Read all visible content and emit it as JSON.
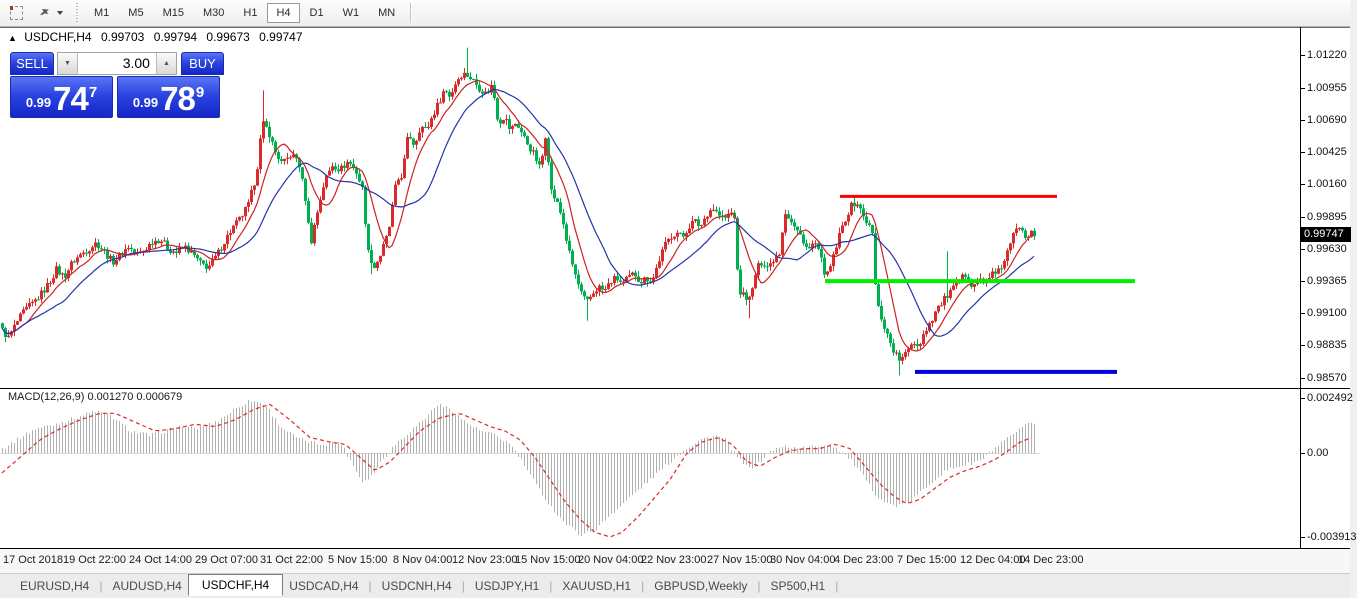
{
  "toolbar": {
    "icons": [
      {
        "name": "chart-shift-icon"
      },
      {
        "name": "arrange-arrows-icon"
      }
    ],
    "timeframes": [
      "M1",
      "M5",
      "M15",
      "M30",
      "H1",
      "H4",
      "D1",
      "W1",
      "MN"
    ],
    "active_timeframe": "H4"
  },
  "chart_header": {
    "collapse_icon": "▲",
    "symbol": "USDCHF,H4",
    "open": "0.99703",
    "high": "0.99794",
    "low": "0.99673",
    "close": "0.99747"
  },
  "trade_panel": {
    "sell_label": "SELL",
    "buy_label": "BUY",
    "volume": "3.00",
    "spin_down_icon": "▼",
    "spin_up_icon": "▲",
    "sell_price": {
      "prefix": "0.99",
      "big": "74",
      "sup": "7"
    },
    "buy_price": {
      "prefix": "0.99",
      "big": "78",
      "sup": "9"
    }
  },
  "price_axis": {
    "labels": [
      {
        "text": "1.01220",
        "y": 55
      },
      {
        "text": "1.00955",
        "y": 88
      },
      {
        "text": "1.00690",
        "y": 120
      },
      {
        "text": "1.00425",
        "y": 152
      },
      {
        "text": "1.00160",
        "y": 184
      },
      {
        "text": "0.99895",
        "y": 217
      },
      {
        "text": "0.99630",
        "y": 249
      },
      {
        "text": "0.99365",
        "y": 281
      },
      {
        "text": "0.99100",
        "y": 313
      },
      {
        "text": "0.98835",
        "y": 345
      },
      {
        "text": "0.98570",
        "y": 378
      }
    ],
    "current": {
      "text": "0.99747",
      "y": 235
    }
  },
  "macd_panel": {
    "label": "MACD(12,26,9) 0.001270 0.000679",
    "axis": [
      {
        "text": "0.002492",
        "y": 398
      },
      {
        "text": "0.00",
        "y": 453
      },
      {
        "text": "-0.003913",
        "y": 537
      }
    ]
  },
  "time_axis": {
    "labels": [
      "17 Oct 2018",
      "19 Oct 22:00",
      "24 Oct 14:00",
      "29 Oct 07:00",
      "31 Oct 22:00",
      "5 Nov 15:00",
      "8 Nov 04:00",
      "12 Nov 23:00",
      "15 Nov 15:00",
      "20 Nov 04:00",
      "22 Nov 23:00",
      "27 Nov 15:00",
      "30 Nov 04:00",
      "4 Dec 23:00",
      "7 Dec 15:00",
      "12 Dec 04:00",
      "14 Dec 23:00"
    ],
    "x": [
      3,
      63,
      129,
      195,
      260,
      328,
      393,
      452,
      515,
      578,
      641,
      707,
      770,
      834,
      897,
      960,
      1018
    ],
    "tick_x": [
      2,
      57,
      123,
      189,
      254,
      322,
      387,
      446,
      509,
      572,
      637,
      701,
      766,
      828,
      891,
      954,
      1016
    ]
  },
  "tabs": {
    "items": [
      "EURUSD,H4",
      "AUDUSD,H4",
      "USDCHF,H4",
      "USDCAD,H4",
      "USDCNH,H4",
      "USDJPY,H1",
      "XAUUSD,H1",
      "GBPUSD,Weekly",
      "SP500,H1"
    ],
    "active": "USDCHF,H4"
  },
  "colors": {
    "up": "#d92b2b",
    "down": "#00b050",
    "ma_fast": "#cc2222",
    "ma_slow": "#2433a8",
    "hist": "#b0b0b0",
    "signal": "#d92b2b",
    "badge_bg": "#000000",
    "badge_text": "#ffffff"
  },
  "chart_data": {
    "type": "candlestick",
    "symbol": "USDCHF",
    "timeframe": "H4",
    "indicator": "MACD(12,26,9)",
    "y_axis": {
      "top_price": 1.0122,
      "top_y": 55,
      "bottom_price": 0.9857,
      "bottom_y": 378
    },
    "x_range": [
      2,
      1035
    ],
    "candle_pitch": 3,
    "price_path": [
      [
        2,
        0.9896
      ],
      [
        8,
        0.989
      ],
      [
        16,
        0.9902
      ],
      [
        24,
        0.9912
      ],
      [
        32,
        0.9918
      ],
      [
        40,
        0.9925
      ],
      [
        48,
        0.9934
      ],
      [
        56,
        0.9946
      ],
      [
        64,
        0.994
      ],
      [
        72,
        0.9952
      ],
      [
        80,
        0.9958
      ],
      [
        88,
        0.9963
      ],
      [
        96,
        0.9968
      ],
      [
        104,
        0.9961
      ],
      [
        112,
        0.9952
      ],
      [
        120,
        0.9958
      ],
      [
        128,
        0.9965
      ],
      [
        136,
        0.9958
      ],
      [
        144,
        0.9962
      ],
      [
        152,
        0.9969
      ],
      [
        160,
        0.9971
      ],
      [
        168,
        0.9963
      ],
      [
        176,
        0.996
      ],
      [
        184,
        0.9965
      ],
      [
        192,
        0.9959
      ],
      [
        200,
        0.9951
      ],
      [
        208,
        0.9948
      ],
      [
        216,
        0.9957
      ],
      [
        224,
        0.9969
      ],
      [
        232,
        0.998
      ],
      [
        240,
        0.9988
      ],
      [
        248,
        0.9999
      ],
      [
        256,
        1.0024
      ],
      [
        262,
        1.0066
      ],
      [
        268,
        1.006
      ],
      [
        274,
        1.0044
      ],
      [
        282,
        1.0032
      ],
      [
        290,
        1.004
      ],
      [
        298,
        1.0036
      ],
      [
        306,
        1.0
      ],
      [
        310,
        0.9966
      ],
      [
        316,
        0.999
      ],
      [
        324,
        1.0018
      ],
      [
        332,
        1.0032
      ],
      [
        340,
        1.0028
      ],
      [
        348,
        1.0035
      ],
      [
        356,
        1.0026
      ],
      [
        362,
        1.0012
      ],
      [
        368,
        0.996
      ],
      [
        374,
        0.9948
      ],
      [
        380,
        0.9958
      ],
      [
        388,
        0.9976
      ],
      [
        396,
        1.0018
      ],
      [
        402,
        1.0024
      ],
      [
        408,
        1.0058
      ],
      [
        414,
        1.0048
      ],
      [
        420,
        1.0064
      ],
      [
        426,
        1.006
      ],
      [
        432,
        1.0072
      ],
      [
        438,
        1.0082
      ],
      [
        444,
        1.0094
      ],
      [
        450,
        1.0088
      ],
      [
        456,
        1.0101
      ],
      [
        462,
        1.0107
      ],
      [
        468,
        1.0105
      ],
      [
        474,
        1.01
      ],
      [
        480,
        1.0094
      ],
      [
        486,
        1.009
      ],
      [
        492,
        1.0098
      ],
      [
        498,
        1.0066
      ],
      [
        504,
        1.0072
      ],
      [
        510,
        1.006
      ],
      [
        516,
        1.0067
      ],
      [
        522,
        1.0057
      ],
      [
        528,
        1.0048
      ],
      [
        534,
        1.004
      ],
      [
        540,
        1.0028
      ],
      [
        546,
        1.0062
      ],
      [
        550,
        1.0012
      ],
      [
        556,
        1.0002
      ],
      [
        562,
        0.9988
      ],
      [
        568,
        0.9962
      ],
      [
        574,
        0.9944
      ],
      [
        580,
        0.9928
      ],
      [
        586,
        0.9918
      ],
      [
        592,
        0.9926
      ],
      [
        598,
        0.9932
      ],
      [
        604,
        0.9928
      ],
      [
        610,
        0.9936
      ],
      [
        616,
        0.9939
      ],
      [
        622,
        0.9934
      ],
      [
        628,
        0.9939
      ],
      [
        634,
        0.9943
      ],
      [
        640,
        0.9936
      ],
      [
        646,
        0.9939
      ],
      [
        652,
        0.9937
      ],
      [
        658,
        0.9952
      ],
      [
        664,
        0.9965
      ],
      [
        670,
        0.9973
      ],
      [
        676,
        0.9977
      ],
      [
        682,
        0.9972
      ],
      [
        688,
        0.9981
      ],
      [
        694,
        0.9986
      ],
      [
        700,
        0.9981
      ],
      [
        706,
        0.9991
      ],
      [
        712,
        0.9997
      ],
      [
        718,
        0.9991
      ],
      [
        724,
        0.9987
      ],
      [
        730,
        0.9993
      ],
      [
        734,
        0.999
      ],
      [
        738,
        0.9928
      ],
      [
        744,
        0.9925
      ],
      [
        750,
        0.9921
      ],
      [
        756,
        0.9946
      ],
      [
        762,
        0.9953
      ],
      [
        768,
        0.9948
      ],
      [
        774,
        0.9956
      ],
      [
        780,
        0.9961
      ],
      [
        784,
        0.9995
      ],
      [
        790,
        0.9986
      ],
      [
        796,
        0.9978
      ],
      [
        802,
        0.9972
      ],
      [
        808,
        0.9961
      ],
      [
        814,
        0.9969
      ],
      [
        820,
        0.9956
      ],
      [
        826,
        0.9939
      ],
      [
        832,
        0.9953
      ],
      [
        838,
        0.9971
      ],
      [
        844,
        0.9986
      ],
      [
        850,
        0.9997
      ],
      [
        856,
        1.0002
      ],
      [
        862,
        0.9991
      ],
      [
        868,
        0.9983
      ],
      [
        872,
        0.9975
      ],
      [
        876,
        0.992
      ],
      [
        882,
        0.9904
      ],
      [
        888,
        0.989
      ],
      [
        894,
        0.9878
      ],
      [
        900,
        0.9871
      ],
      [
        906,
        0.9877
      ],
      [
        912,
        0.9888
      ],
      [
        918,
        0.9883
      ],
      [
        924,
        0.9895
      ],
      [
        930,
        0.9903
      ],
      [
        936,
        0.9913
      ],
      [
        942,
        0.9919
      ],
      [
        948,
        0.9926
      ],
      [
        954,
        0.9931
      ],
      [
        960,
        0.9937
      ],
      [
        966,
        0.9943
      ],
      [
        972,
        0.9933
      ],
      [
        978,
        0.9939
      ],
      [
        984,
        0.9933
      ],
      [
        990,
        0.9943
      ],
      [
        996,
        0.9941
      ],
      [
        1002,
        0.995
      ],
      [
        1008,
        0.9962
      ],
      [
        1014,
        0.9976
      ],
      [
        1020,
        0.9983
      ],
      [
        1026,
        0.9973
      ],
      [
        1031,
        0.9979
      ],
      [
        1035,
        0.99747
      ]
    ],
    "wicks": [
      {
        "x": 264,
        "high": 1.0093
      },
      {
        "x": 372,
        "low": 0.9942
      },
      {
        "x": 466,
        "high": 1.0128
      },
      {
        "x": 586,
        "low": 0.9904
      },
      {
        "x": 750,
        "low": 0.9906
      },
      {
        "x": 900,
        "low": 0.9859
      },
      {
        "x": 946,
        "high": 0.9961
      }
    ],
    "hlines": [
      {
        "price": 1.0006,
        "x1": 840,
        "x2": 1057,
        "color": "#ff0000",
        "w": 3
      },
      {
        "price": 0.99365,
        "x1": 825,
        "x2": 1135,
        "color": "#00ee00",
        "w": 4
      },
      {
        "price": 0.9862,
        "x1": 915,
        "x2": 1117,
        "color": "#0000e0",
        "w": 4
      }
    ],
    "ma": {
      "fast_period": 9,
      "slow_period": 21
    },
    "macd": {
      "zero_y": 453,
      "top_value": 0.002492,
      "top_y": 398,
      "hist": [
        [
          2,
          0.0002
        ],
        [
          20,
          0.0007
        ],
        [
          35,
          0.0011
        ],
        [
          55,
          0.0013
        ],
        [
          75,
          0.0016
        ],
        [
          95,
          0.0019
        ],
        [
          110,
          0.0017
        ],
        [
          130,
          0.001
        ],
        [
          150,
          0.0008
        ],
        [
          165,
          0.001
        ],
        [
          180,
          0.0012
        ],
        [
          195,
          0.0011
        ],
        [
          215,
          0.0014
        ],
        [
          235,
          0.002
        ],
        [
          250,
          0.0024
        ],
        [
          265,
          0.0022
        ],
        [
          280,
          0.0012
        ],
        [
          300,
          0.0006
        ],
        [
          320,
          0.0004
        ],
        [
          340,
          0.0005
        ],
        [
          352,
          -0.0005
        ],
        [
          362,
          -0.0013
        ],
        [
          372,
          -0.001
        ],
        [
          382,
          -0.0003
        ],
        [
          395,
          0.0004
        ],
        [
          410,
          0.001
        ],
        [
          425,
          0.0016
        ],
        [
          437,
          0.0022
        ],
        [
          450,
          0.002
        ],
        [
          465,
          0.0014
        ],
        [
          480,
          0.001
        ],
        [
          495,
          0.0008
        ],
        [
          510,
          0.0004
        ],
        [
          522,
          -0.0004
        ],
        [
          535,
          -0.0014
        ],
        [
          550,
          -0.0024
        ],
        [
          565,
          -0.0032
        ],
        [
          580,
          -0.0037
        ],
        [
          595,
          -0.0035
        ],
        [
          610,
          -0.0028
        ],
        [
          625,
          -0.0022
        ],
        [
          640,
          -0.0016
        ],
        [
          655,
          -0.001
        ],
        [
          670,
          -0.0004
        ],
        [
          685,
          0.0002
        ],
        [
          700,
          0.0006
        ],
        [
          715,
          0.0008
        ],
        [
          725,
          0.0006
        ],
        [
          737,
          -0.0002
        ],
        [
          748,
          -0.0007
        ],
        [
          758,
          -0.0005
        ],
        [
          770,
          0.0001
        ],
        [
          785,
          0.0003
        ],
        [
          800,
          0.0002
        ],
        [
          815,
          0.0003
        ],
        [
          830,
          0.0004
        ],
        [
          840,
          0.0001
        ],
        [
          850,
          -0.0003
        ],
        [
          862,
          -0.001
        ],
        [
          874,
          -0.0018
        ],
        [
          886,
          -0.0023
        ],
        [
          898,
          -0.0024
        ],
        [
          910,
          -0.0022
        ],
        [
          922,
          -0.0017
        ],
        [
          934,
          -0.0012
        ],
        [
          946,
          -0.0008
        ],
        [
          958,
          -0.0006
        ],
        [
          970,
          -0.0005
        ],
        [
          982,
          -0.0003
        ],
        [
          994,
          0.0002
        ],
        [
          1006,
          0.0006
        ],
        [
          1018,
          0.001
        ],
        [
          1028,
          0.0013
        ],
        [
          1035,
          0.0014
        ]
      ],
      "signal": [
        [
          2,
          -0.0009
        ],
        [
          20,
          -0.0002
        ],
        [
          40,
          0.0006
        ],
        [
          60,
          0.0011
        ],
        [
          80,
          0.0015
        ],
        [
          100,
          0.0018
        ],
        [
          115,
          0.0018
        ],
        [
          135,
          0.0014
        ],
        [
          155,
          0.001
        ],
        [
          175,
          0.0011
        ],
        [
          195,
          0.0013
        ],
        [
          215,
          0.0012
        ],
        [
          235,
          0.0015
        ],
        [
          255,
          0.002
        ],
        [
          270,
          0.0022
        ],
        [
          290,
          0.0015
        ],
        [
          310,
          0.0007
        ],
        [
          330,
          0.0005
        ],
        [
          345,
          0.0004
        ],
        [
          360,
          -0.0002
        ],
        [
          375,
          -0.0008
        ],
        [
          390,
          -0.0004
        ],
        [
          405,
          0.0003
        ],
        [
          420,
          0.001
        ],
        [
          440,
          0.0016
        ],
        [
          460,
          0.0018
        ],
        [
          475,
          0.0015
        ],
        [
          490,
          0.0012
        ],
        [
          505,
          0.001
        ],
        [
          520,
          0.0006
        ],
        [
          535,
          -0.0002
        ],
        [
          550,
          -0.0012
        ],
        [
          565,
          -0.0022
        ],
        [
          580,
          -0.003
        ],
        [
          595,
          -0.0036
        ],
        [
          610,
          -0.0038
        ],
        [
          622,
          -0.0036
        ],
        [
          640,
          -0.0028
        ],
        [
          655,
          -0.002
        ],
        [
          670,
          -0.0012
        ],
        [
          687,
          0.0
        ],
        [
          702,
          0.0005
        ],
        [
          717,
          0.0007
        ],
        [
          732,
          0.0004
        ],
        [
          747,
          -0.0004
        ],
        [
          760,
          -0.0006
        ],
        [
          775,
          -0.0002
        ],
        [
          790,
          0.0001
        ],
        [
          805,
          0.0002
        ],
        [
          820,
          0.0002
        ],
        [
          835,
          0.0004
        ],
        [
          850,
          0.0002
        ],
        [
          865,
          -0.0006
        ],
        [
          880,
          -0.0014
        ],
        [
          895,
          -0.002
        ],
        [
          907,
          -0.0023
        ],
        [
          920,
          -0.0021
        ],
        [
          935,
          -0.0016
        ],
        [
          950,
          -0.0011
        ],
        [
          965,
          -0.0008
        ],
        [
          980,
          -0.0006
        ],
        [
          995,
          -0.0003
        ],
        [
          1008,
          0.0001
        ],
        [
          1020,
          0.0005
        ],
        [
          1032,
          0.0007
        ]
      ]
    }
  }
}
